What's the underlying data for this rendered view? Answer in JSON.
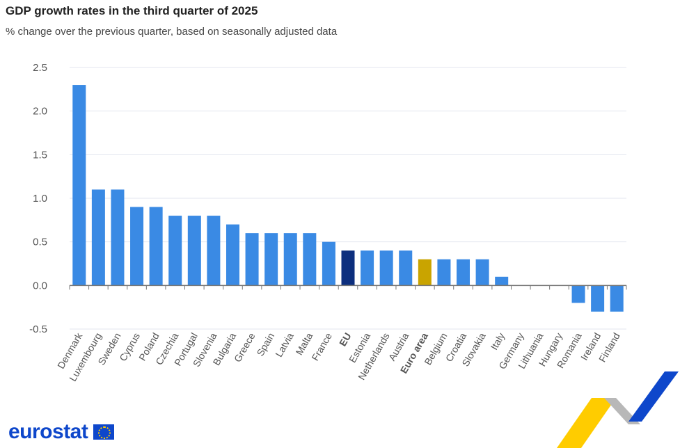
{
  "title": "GDP growth rates in the third quarter of 2025",
  "subtitle": "% change over the previous quarter, based on seasonally adjusted data",
  "logo_text": "eurostat",
  "chart_data": {
    "type": "bar",
    "title": "GDP growth rates in the third quarter of 2025",
    "subtitle": "% change over the previous quarter, based on seasonally adjusted data",
    "categories": [
      "Denmark",
      "Luxembourg",
      "Sweden",
      "Cyprus",
      "Poland",
      "Czechia",
      "Portugal",
      "Slovenia",
      "Bulgaria",
      "Greece",
      "Spain",
      "Latvia",
      "Malta",
      "France",
      "EU",
      "Estonia",
      "Netherlands",
      "Austria",
      "Euro area",
      "Belgium",
      "Croatia",
      "Slovakia",
      "Italy",
      "Germany",
      "Lithuania",
      "Hungary",
      "Romania",
      "Ireland",
      "Finland"
    ],
    "values": [
      2.3,
      1.1,
      1.1,
      0.9,
      0.9,
      0.8,
      0.8,
      0.8,
      0.7,
      0.6,
      0.6,
      0.6,
      0.6,
      0.5,
      0.4,
      0.4,
      0.4,
      0.4,
      0.3,
      0.3,
      0.3,
      0.3,
      0.1,
      0.0,
      0.0,
      0.0,
      -0.2,
      -0.3,
      -0.3
    ],
    "highlight": {
      "EU": "#0d2f7e",
      "Euro area": "#c9a400"
    },
    "bold_categories": [
      "EU",
      "Euro area"
    ],
    "bar_color": "#3a8ae4",
    "yticks": [
      "2.5",
      "2.0",
      "1.5",
      "1.0",
      "0.5",
      "0.0",
      "-0.5"
    ],
    "ylim": [
      -0.5,
      2.5
    ],
    "grid": true,
    "xlabel": "",
    "ylabel": ""
  }
}
